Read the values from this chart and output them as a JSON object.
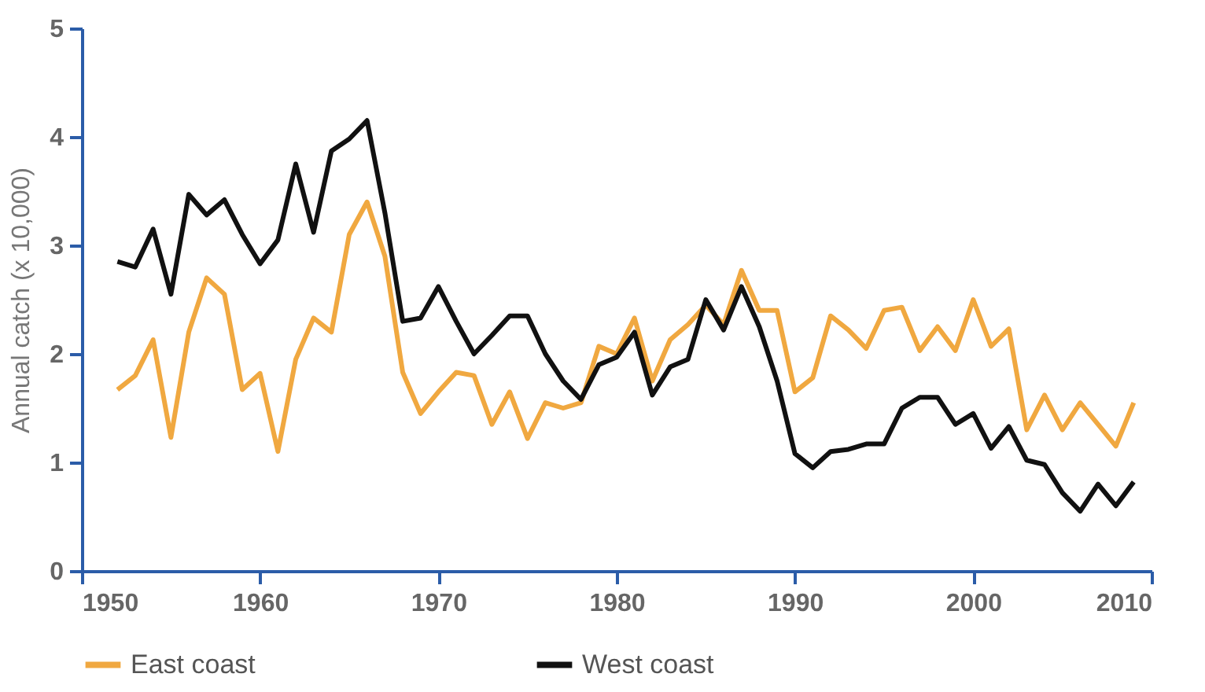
{
  "chart_data": {
    "type": "line",
    "ylabel": "Annual catch (x 10,000)",
    "x": [
      1952,
      1953,
      1954,
      1955,
      1956,
      1957,
      1958,
      1959,
      1960,
      1961,
      1962,
      1963,
      1964,
      1965,
      1966,
      1967,
      1968,
      1969,
      1970,
      1971,
      1972,
      1973,
      1974,
      1975,
      1976,
      1977,
      1978,
      1979,
      1980,
      1981,
      1982,
      1983,
      1984,
      1985,
      1986,
      1987,
      1988,
      1989,
      1990,
      1991,
      1992,
      1993,
      1994,
      1995,
      1996,
      1997,
      1998,
      1999,
      2000,
      2001,
      2002,
      2003,
      2004,
      2005,
      2006,
      2007,
      2008,
      2009
    ],
    "series": [
      {
        "name": "East coast",
        "color": "#f0a840",
        "values": [
          1.67,
          1.8,
          2.13,
          1.23,
          2.2,
          2.7,
          2.55,
          1.67,
          1.82,
          1.1,
          1.95,
          2.33,
          2.2,
          3.1,
          3.4,
          2.9,
          1.83,
          1.45,
          1.65,
          1.83,
          1.8,
          1.35,
          1.65,
          1.22,
          1.55,
          1.5,
          1.55,
          2.07,
          2.0,
          2.33,
          1.75,
          2.13,
          2.27,
          2.45,
          2.27,
          2.77,
          2.4,
          2.4,
          1.65,
          1.78,
          2.35,
          2.22,
          2.05,
          2.4,
          2.43,
          2.03,
          2.25,
          2.03,
          2.5,
          2.07,
          2.23,
          1.3,
          1.62,
          1.3,
          1.55,
          1.35,
          1.15,
          1.55
        ]
      },
      {
        "name": "West coast",
        "color": "#111111",
        "values": [
          2.85,
          2.8,
          3.15,
          2.55,
          3.47,
          3.28,
          3.42,
          3.1,
          2.83,
          3.05,
          3.75,
          3.12,
          3.87,
          3.98,
          4.15,
          3.3,
          2.3,
          2.33,
          2.62,
          2.3,
          2.0,
          2.17,
          2.35,
          2.35,
          2.0,
          1.75,
          1.58,
          1.9,
          1.97,
          2.2,
          1.62,
          1.88,
          1.95,
          2.5,
          2.22,
          2.62,
          2.25,
          1.75,
          1.08,
          0.95,
          1.1,
          1.12,
          1.17,
          1.17,
          1.5,
          1.6,
          1.6,
          1.35,
          1.45,
          1.13,
          1.33,
          1.02,
          0.98,
          0.72,
          0.55,
          0.8,
          0.6,
          0.82
        ]
      }
    ],
    "xlim": [
      1950,
      2010
    ],
    "xticks": [
      1950,
      1960,
      1970,
      1980,
      1990,
      2000,
      2010
    ],
    "ylim": [
      0,
      5
    ],
    "yticks": [
      0,
      1,
      2,
      3,
      4,
      5
    ],
    "grid": false,
    "legend": "bottom",
    "marker": "none",
    "line_style": "solid"
  }
}
